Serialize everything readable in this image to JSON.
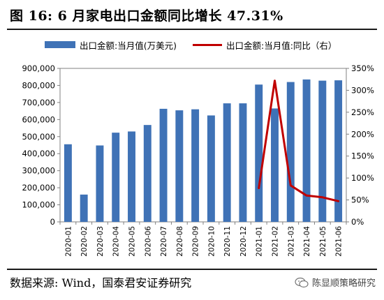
{
  "title": "图 16:  6 月家电出口金额同比增长 47.31%",
  "legend": {
    "bar_label": "出口金额:当月值(万美元)",
    "line_label": "出口金额:当月值:同比（右）"
  },
  "source": "数据来源:  Wind，国泰君安证券研究",
  "watermark": "陈显顺策略研究",
  "colors": {
    "bar": "#3f72b6",
    "line": "#c00000",
    "axis": "#808080"
  },
  "chart_data": {
    "type": "bar",
    "categories": [
      "2020-01",
      "2020-02",
      "2020-03",
      "2020-04",
      "2020-05",
      "2020-06",
      "2020-07",
      "2020-08",
      "2020-09",
      "2020-10",
      "2020-11",
      "2020-12",
      "2021-01",
      "2021-02",
      "2021-03",
      "2021-04",
      "2021-05",
      "2021-06"
    ],
    "series": [
      {
        "name": "出口金额:当月值(万美元)",
        "type": "bar",
        "axis": "left",
        "values": [
          455000,
          160000,
          448000,
          523000,
          530000,
          568000,
          663000,
          654000,
          660000,
          624000,
          695000,
          695000,
          805000,
          665000,
          820000,
          835000,
          828000,
          830000
        ]
      },
      {
        "name": "出口金额:当月值:同比（右）",
        "type": "line",
        "axis": "right",
        "x": [
          "2021-01",
          "2021-02",
          "2021-03",
          "2021-04",
          "2021-05",
          "2021-06"
        ],
        "values": [
          77,
          322,
          83,
          60,
          56,
          47.31
        ]
      }
    ],
    "y_left": {
      "min": 0,
      "max": 900000,
      "step": 100000,
      "ticks": [
        "0",
        "100,000",
        "200,000",
        "300,000",
        "400,000",
        "500,000",
        "600,000",
        "700,000",
        "800,000",
        "900,000"
      ]
    },
    "y_right": {
      "min": 0,
      "max": 350,
      "step": 50,
      "ticks": [
        "0%",
        "50%",
        "100%",
        "150%",
        "200%",
        "250%",
        "300%",
        "350%"
      ]
    },
    "grid": false,
    "legend_position": "top"
  }
}
